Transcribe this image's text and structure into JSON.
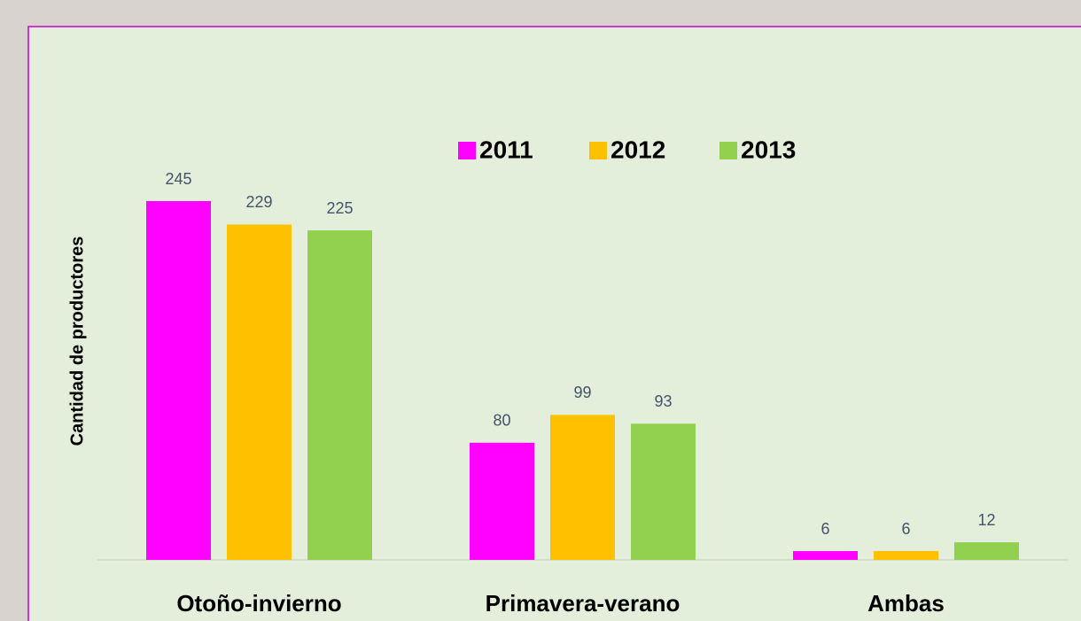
{
  "chart_data": {
    "type": "bar",
    "y_label": "Cantidad de productores",
    "categories": [
      "Otoño-invierno",
      "Primavera-verano",
      "Ambas"
    ],
    "series": [
      {
        "name": "2011",
        "color": "#ff00ff",
        "values": [
          245,
          80,
          6
        ]
      },
      {
        "name": "2012",
        "color": "#ffc000",
        "values": [
          229,
          99,
          6
        ]
      },
      {
        "name": "2013",
        "color": "#92d050",
        "values": [
          225,
          93,
          12
        ]
      }
    ],
    "legend": "top"
  }
}
